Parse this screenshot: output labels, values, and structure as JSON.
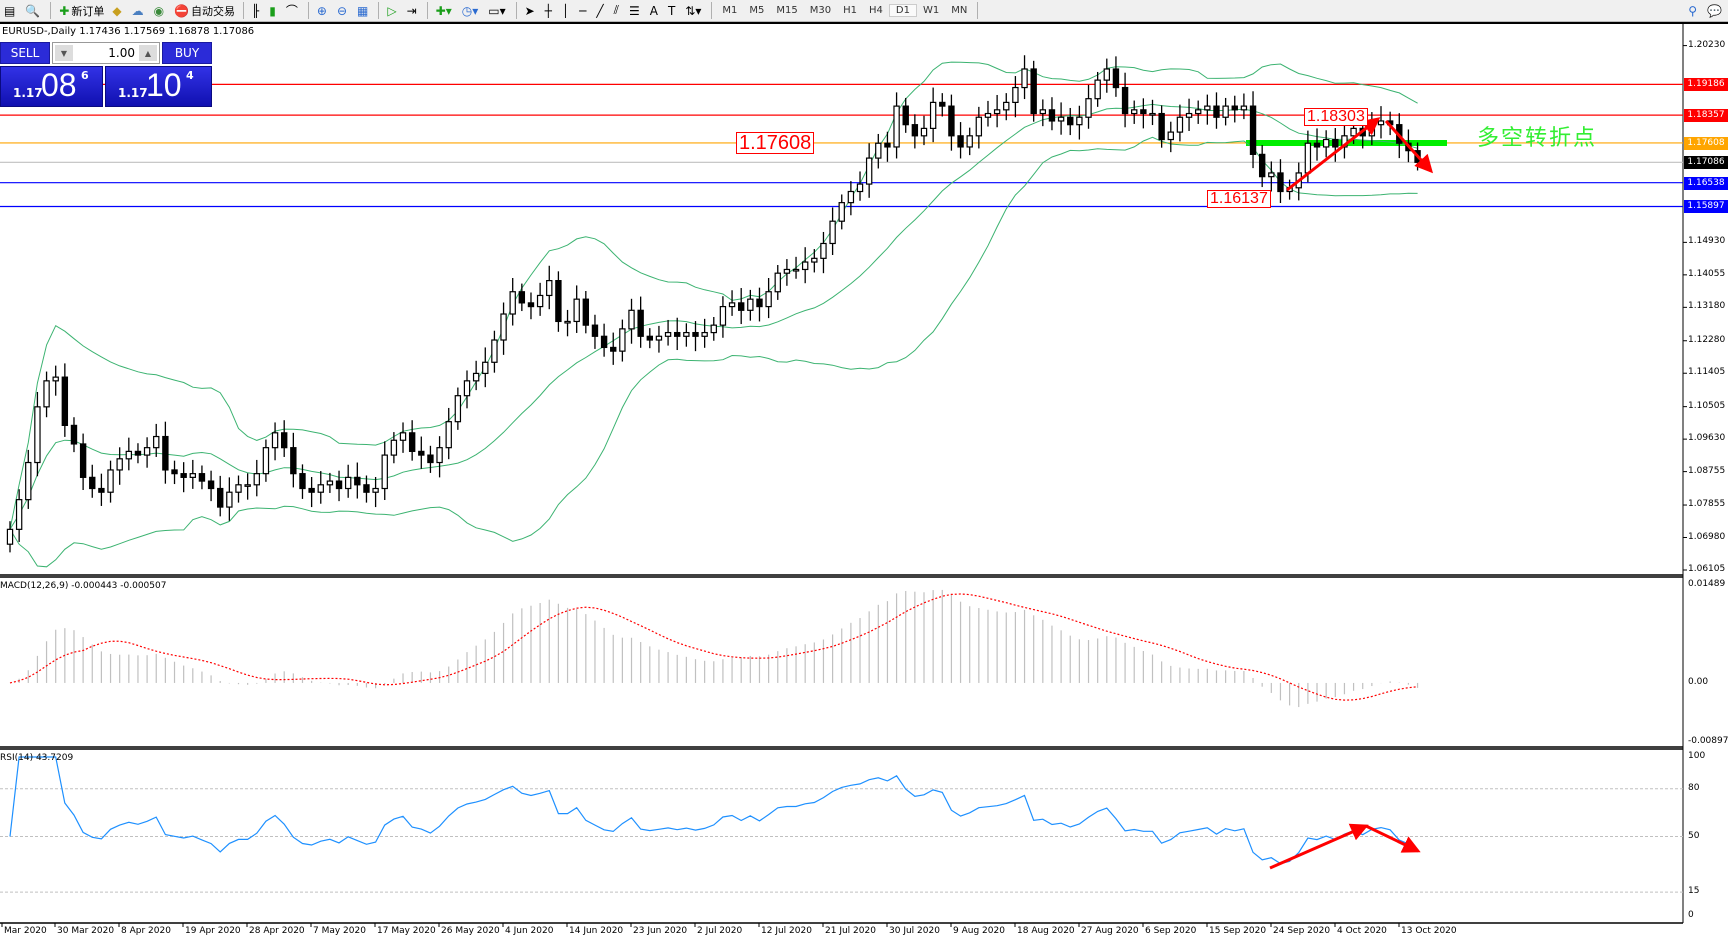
{
  "toolbar": {
    "new_order": "新订单",
    "auto_trading": "自动交易",
    "timeframes": [
      "M1",
      "M5",
      "M15",
      "M30",
      "H1",
      "H4",
      "D1",
      "W1",
      "MN"
    ],
    "active_timeframe": "D1"
  },
  "chart": {
    "header": "EURUSD-,Daily  1.17436 1.17569 1.16878 1.17086",
    "symbol": "EURUSD-",
    "period": "Daily"
  },
  "trade_panel": {
    "sell_label": "SELL",
    "buy_label": "BUY",
    "lot": "1.00",
    "sell_price": {
      "prefix": "1.17",
      "big": "08",
      "sup": "6"
    },
    "buy_price": {
      "prefix": "1.17",
      "big": "10",
      "sup": "4"
    }
  },
  "price_axis": {
    "ticks": [
      "1.20230",
      "1.14930",
      "1.14055",
      "1.13180",
      "1.12280",
      "1.11405",
      "1.10505",
      "1.09630",
      "1.08755",
      "1.07855",
      "1.06980",
      "1.06105"
    ],
    "range": [
      1.06105,
      1.2023
    ]
  },
  "levels": [
    {
      "price": "1.19186",
      "color": "#ff0000"
    },
    {
      "price": "1.18357",
      "color": "#ff0000"
    },
    {
      "price": "1.17608",
      "color": "#ffa500"
    },
    {
      "price": "1.17086",
      "color": "#000000",
      "line_color": "#c0c0c0"
    },
    {
      "price": "1.16538",
      "color": "#0000ff"
    },
    {
      "price": "1.15897",
      "color": "#0000ff"
    }
  ],
  "annotations": {
    "label_17608": "1.17608",
    "label_high": "1.18303",
    "label_low": "1.16137",
    "turning_point": "多空转折点"
  },
  "chart_data": {
    "type": "candlestick",
    "closes": [
      1.072,
      1.08,
      1.09,
      1.105,
      1.112,
      1.113,
      1.1,
      1.095,
      1.086,
      1.083,
      1.082,
      1.088,
      1.091,
      1.093,
      1.092,
      1.094,
      1.097,
      1.088,
      1.087,
      1.086,
      1.087,
      1.085,
      1.083,
      1.078,
      1.082,
      1.084,
      1.084,
      1.087,
      1.094,
      1.098,
      1.094,
      1.087,
      1.083,
      1.082,
      1.084,
      1.085,
      1.083,
      1.086,
      1.084,
      1.082,
      1.083,
      1.092,
      1.096,
      1.098,
      1.093,
      1.092,
      1.09,
      1.094,
      1.101,
      1.108,
      1.112,
      1.114,
      1.117,
      1.123,
      1.13,
      1.136,
      1.133,
      1.132,
      1.135,
      1.139,
      1.128,
      1.128,
      1.134,
      1.127,
      1.124,
      1.121,
      1.12,
      1.126,
      1.131,
      1.124,
      1.123,
      1.124,
      1.125,
      1.124,
      1.125,
      1.124,
      1.125,
      1.127,
      1.132,
      1.133,
      1.131,
      1.134,
      1.132,
      1.136,
      1.141,
      1.142,
      1.142,
      1.144,
      1.145,
      1.149,
      1.155,
      1.16,
      1.163,
      1.165,
      1.172,
      1.176,
      1.175,
      1.186,
      1.181,
      1.178,
      1.18,
      1.187,
      1.186,
      1.178,
      1.175,
      1.178,
      1.183,
      1.184,
      1.185,
      1.187,
      1.191,
      1.196,
      1.184,
      1.185,
      1.182,
      1.183,
      1.181,
      1.183,
      1.188,
      1.193,
      1.196,
      1.191,
      1.184,
      1.185,
      1.184,
      1.184,
      1.177,
      1.179,
      1.183,
      1.184,
      1.185,
      1.186,
      1.183,
      1.186,
      1.185,
      1.186,
      1.173,
      1.167,
      1.168,
      1.163,
      1.164,
      1.168,
      1.176,
      1.175,
      1.177,
      1.175,
      1.178,
      1.18,
      1.178,
      1.181,
      1.182,
      1.181,
      1.176,
      1.174,
      1.17086
    ],
    "date_labels": [
      "Mar 2020",
      "30 Mar 2020",
      "8 Apr 2020",
      "19 Apr 2020",
      "28 Apr 2020",
      "7 May 2020",
      "17 May 2020",
      "26 May 2020",
      "4 Jun 2020",
      "14 Jun 2020",
      "23 Jun 2020",
      "2 Jul 2020",
      "12 Jul 2020",
      "21 Jul 2020",
      "30 Jul 2020",
      "9 Aug 2020",
      "18 Aug 2020",
      "27 Aug 2020",
      "6 Sep 2020",
      "15 Sep 2020",
      "24 Sep 2020",
      "4 Oct 2020",
      "13 Oct 2020"
    ],
    "bollinger": {
      "period": 20,
      "deviation": 2,
      "color": "#3cb371"
    }
  },
  "macd": {
    "label": "MACD(12,26,9) -0.000443 -0.000507",
    "ticks": [
      "0.01489",
      "0.00",
      "-0.008977"
    ],
    "range": [
      -0.008977,
      0.01489
    ],
    "histogram_color": "#c0c0c0",
    "signal_color": "#ff0000"
  },
  "rsi": {
    "label": "RSI(14) 43.7209",
    "ticks": [
      "100",
      "80",
      "50",
      "15",
      "0"
    ],
    "levels": [
      80,
      50,
      15
    ],
    "color": "#1e90ff"
  }
}
